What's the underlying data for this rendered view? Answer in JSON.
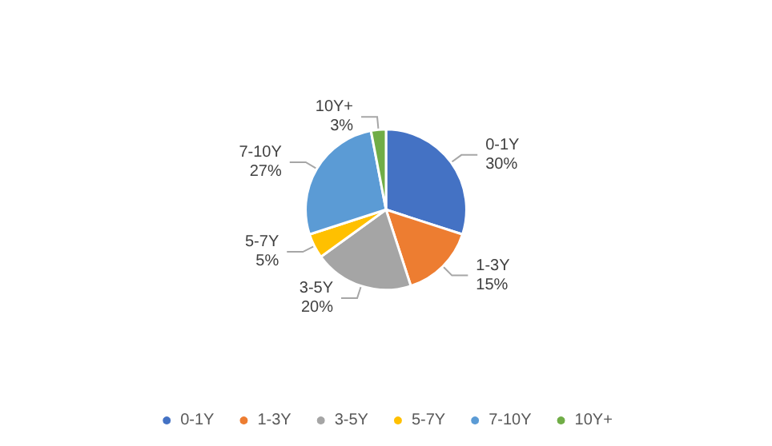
{
  "chart_data": {
    "type": "pie",
    "categories": [
      "0-1Y",
      "1-3Y",
      "3-5Y",
      "5-7Y",
      "7-10Y",
      "10Y+"
    ],
    "values": [
      30,
      15,
      20,
      5,
      27,
      3
    ],
    "value_labels": [
      "30%",
      "15%",
      "20%",
      "5%",
      "27%",
      "3%"
    ],
    "colors": [
      "#4472c4",
      "#ed7d31",
      "#a5a5a5",
      "#ffc000",
      "#5b9bd5",
      "#70ad47"
    ],
    "legend": "bottom"
  }
}
